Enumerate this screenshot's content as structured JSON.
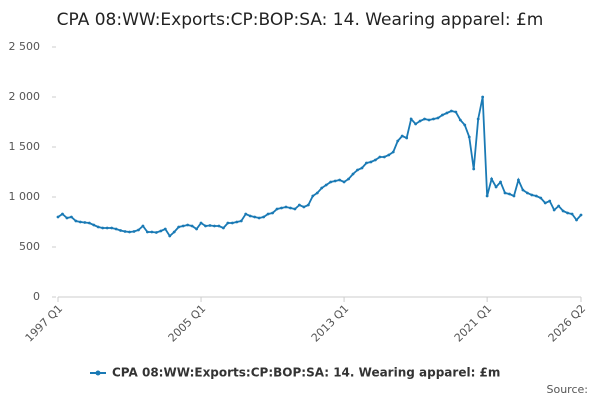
{
  "chart_data": {
    "type": "line",
    "title": "CPA 08:WW:Exports:CP:BOP:SA: 14. Wearing apparel: £m",
    "source": "Source:",
    "categories": [
      "1997 Q1",
      null,
      null,
      null,
      null,
      null,
      null,
      null,
      null,
      null,
      null,
      null,
      null,
      null,
      null,
      null,
      null,
      null,
      null,
      null,
      null,
      null,
      null,
      null,
      null,
      null,
      null,
      null,
      null,
      null,
      null,
      null,
      "2005 Q1",
      null,
      null,
      null,
      null,
      null,
      null,
      null,
      null,
      null,
      null,
      null,
      null,
      null,
      null,
      null,
      null,
      null,
      null,
      null,
      null,
      null,
      null,
      null,
      null,
      null,
      null,
      null,
      null,
      null,
      null,
      null,
      "2013 Q1",
      null,
      null,
      null,
      null,
      null,
      null,
      null,
      null,
      null,
      null,
      null,
      null,
      null,
      null,
      null,
      null,
      null,
      null,
      null,
      null,
      null,
      null,
      null,
      null,
      null,
      null,
      null,
      null,
      null,
      null,
      null,
      "2021 Q1",
      null,
      null,
      null,
      null,
      null,
      null,
      null,
      null,
      null,
      null,
      null,
      null,
      null,
      null,
      null,
      null,
      null,
      null,
      null,
      null,
      "2026 Q2"
    ],
    "series": [
      {
        "name": "CPA 08:WW:Exports:CP:BOP:SA: 14. Wearing apparel: £m",
        "color": "#1a7ab5",
        "values": [
          800,
          830,
          790,
          800,
          760,
          750,
          745,
          740,
          720,
          700,
          690,
          690,
          690,
          680,
          665,
          655,
          650,
          655,
          670,
          710,
          650,
          650,
          645,
          660,
          680,
          610,
          650,
          700,
          710,
          720,
          710,
          680,
          740,
          710,
          715,
          710,
          710,
          690,
          740,
          740,
          750,
          760,
          830,
          810,
          800,
          790,
          800,
          830,
          840,
          880,
          890,
          900,
          890,
          880,
          920,
          900,
          920,
          1010,
          1040,
          1090,
          1120,
          1150,
          1160,
          1170,
          1150,
          1180,
          1230,
          1270,
          1290,
          1340,
          1350,
          1370,
          1400,
          1400,
          1420,
          1450,
          1560,
          1610,
          1590,
          1780,
          1730,
          1760,
          1780,
          1770,
          1780,
          1790,
          1820,
          1840,
          1860,
          1850,
          1770,
          1720,
          1600,
          1280,
          1780,
          2000,
          1010,
          1180,
          1100,
          1150,
          1040,
          1030,
          1010,
          1170,
          1070,
          1040,
          1020,
          1010,
          990,
          940,
          960,
          870,
          910,
          860,
          840,
          830,
          770,
          820
        ]
      }
    ],
    "ylim": [
      0,
      2500
    ],
    "yticks": [
      0,
      500,
      {
        "value": 1000,
        "label": "1 000"
      },
      {
        "value": 1500,
        "label": "1 500"
      },
      {
        "value": 2000,
        "label": "2 000"
      },
      {
        "value": 2500,
        "label": "2 500"
      }
    ],
    "grid": false,
    "legend": "bottom"
  }
}
